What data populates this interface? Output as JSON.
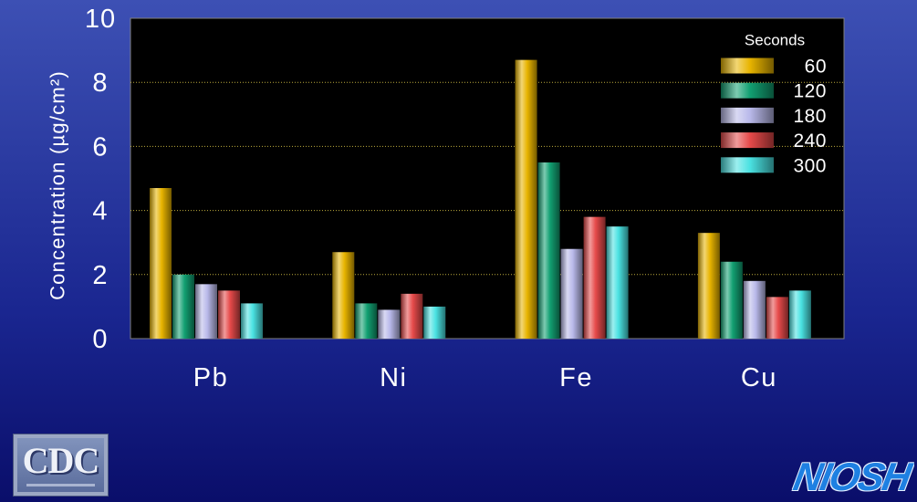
{
  "chart_data": {
    "type": "bar",
    "categories": [
      "Pb",
      "Ni",
      "Fe",
      "Cu"
    ],
    "series": [
      {
        "name": "60",
        "values": [
          4.7,
          2.7,
          8.7,
          3.3
        ],
        "color": "#e8b400"
      },
      {
        "name": "120",
        "values": [
          2.0,
          1.1,
          5.5,
          2.4
        ],
        "color": "#12a072"
      },
      {
        "name": "180",
        "values": [
          1.7,
          0.9,
          2.8,
          1.8
        ],
        "color": "#b9b9ea"
      },
      {
        "name": "240",
        "values": [
          1.5,
          1.4,
          3.8,
          1.3
        ],
        "color": "#e64a4a"
      },
      {
        "name": "300",
        "values": [
          1.1,
          1.0,
          3.5,
          1.5
        ],
        "color": "#4ae2e2"
      }
    ],
    "ylabel": "Concentration (µg/cm²)",
    "ylim": [
      0,
      10
    ],
    "yticks": [
      0,
      2,
      4,
      6,
      8,
      10
    ],
    "grid": true,
    "grid_color": "#bcaa3c",
    "plot_background": "#000000",
    "legend": {
      "title": "Seconds",
      "placement": "top-right"
    }
  },
  "logos": {
    "cdc": "CDC",
    "niosh": "NIOSH"
  }
}
